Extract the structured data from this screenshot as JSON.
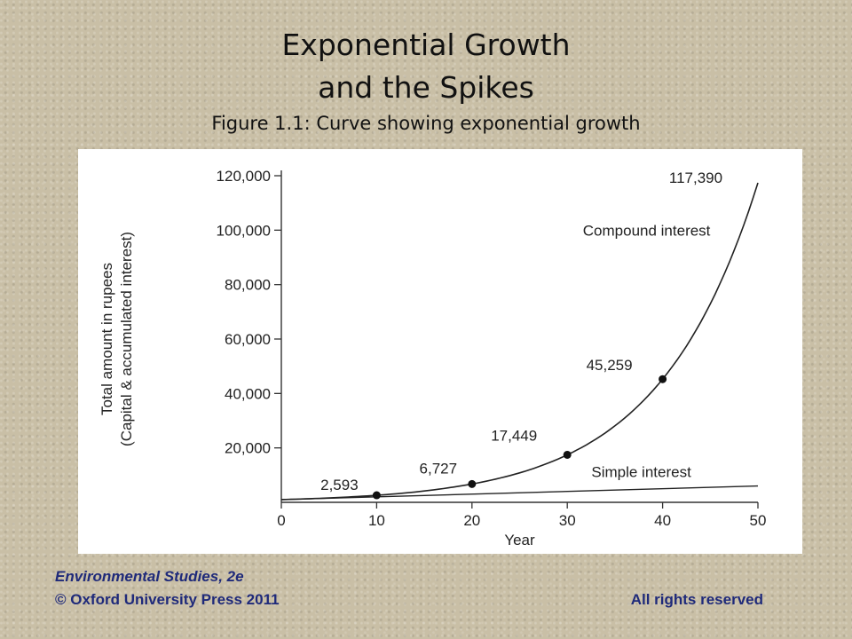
{
  "slide": {
    "title_line1": "Exponential Growth",
    "title_line2": "and the Spikes",
    "subtitle": "Figure 1.1: Curve showing exponential growth",
    "footer_book": "Environmental Studies, 2e",
    "footer_copyright": "© Oxford University Press 2011",
    "footer_rights": "All rights reserved"
  },
  "chart_data": {
    "type": "line",
    "xlabel": "Year",
    "ylabel_line1": "Total amount in rupees",
    "ylabel_line2": "(Capital & accumulated interest)",
    "xlim": [
      0,
      50
    ],
    "ylim": [
      0,
      120000
    ],
    "x_ticks": [
      0,
      10,
      20,
      30,
      40,
      50
    ],
    "y_ticks": [
      20000,
      40000,
      60000,
      80000,
      100000,
      120000
    ],
    "y_tick_labels": [
      "20,000",
      "40,000",
      "60,000",
      "80,000",
      "100,000",
      "120,000"
    ],
    "grid": false,
    "series": [
      {
        "name": "Compound interest",
        "color": "#222222",
        "x": [
          0,
          10,
          20,
          30,
          40,
          50
        ],
        "y": [
          1000,
          2593,
          6727,
          17449,
          45259,
          117390
        ],
        "labels": [
          "",
          "2,593",
          "6,727",
          "17,449",
          "45,259",
          "117,390"
        ],
        "markers_at": [
          10,
          20,
          30,
          40
        ]
      },
      {
        "name": "Simple interest",
        "color": "#222222",
        "x": [
          0,
          50
        ],
        "y": [
          1000,
          6000
        ]
      }
    ]
  }
}
